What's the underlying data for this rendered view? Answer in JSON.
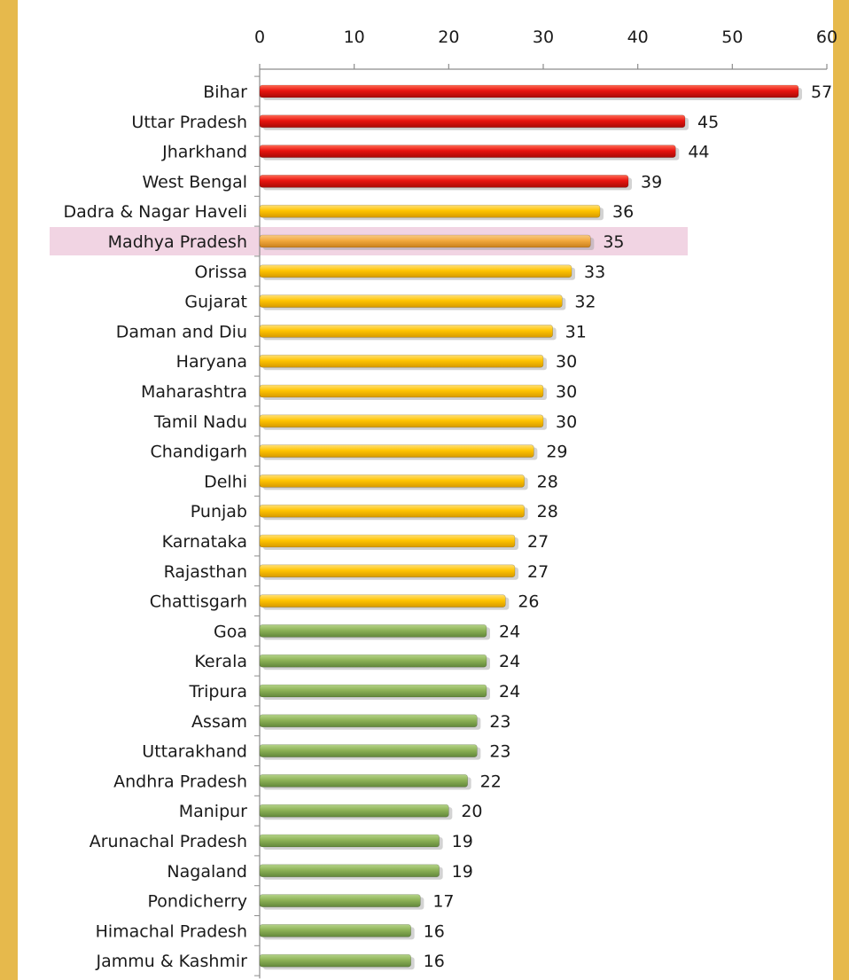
{
  "chart_data": {
    "type": "bar",
    "orientation": "horizontal",
    "x_axis_position": "top",
    "xlim": [
      0,
      60
    ],
    "x_ticks": [
      0,
      10,
      20,
      30,
      40,
      50,
      60
    ],
    "highlighted_category": "Madhya Pradesh",
    "colors": {
      "red": "#E8140F",
      "yellow": "#FFC400",
      "green": "#8DB256",
      "highlight_bar": "#F2A93E",
      "highlight_band": "#F1D4E3"
    },
    "categories": [
      {
        "name": "Bihar",
        "value": 57,
        "color": "red"
      },
      {
        "name": "Uttar Pradesh",
        "value": 45,
        "color": "red"
      },
      {
        "name": "Jharkhand",
        "value": 44,
        "color": "red"
      },
      {
        "name": "West Bengal",
        "value": 39,
        "color": "red"
      },
      {
        "name": "Dadra & Nagar Haveli",
        "value": 36,
        "color": "yellow"
      },
      {
        "name": "Madhya Pradesh",
        "value": 35,
        "color": "highlight_bar"
      },
      {
        "name": "Orissa",
        "value": 33,
        "color": "yellow"
      },
      {
        "name": "Gujarat",
        "value": 32,
        "color": "yellow"
      },
      {
        "name": "Daman and Diu",
        "value": 31,
        "color": "yellow"
      },
      {
        "name": "Haryana",
        "value": 30,
        "color": "yellow"
      },
      {
        "name": "Maharashtra",
        "value": 30,
        "color": "yellow"
      },
      {
        "name": "Tamil Nadu",
        "value": 30,
        "color": "yellow"
      },
      {
        "name": "Chandigarh",
        "value": 29,
        "color": "yellow"
      },
      {
        "name": "Delhi",
        "value": 28,
        "color": "yellow"
      },
      {
        "name": "Punjab",
        "value": 28,
        "color": "yellow"
      },
      {
        "name": "Karnataka",
        "value": 27,
        "color": "yellow"
      },
      {
        "name": "Rajasthan",
        "value": 27,
        "color": "yellow"
      },
      {
        "name": "Chattisgarh",
        "value": 26,
        "color": "yellow"
      },
      {
        "name": "Goa",
        "value": 24,
        "color": "green"
      },
      {
        "name": "Kerala",
        "value": 24,
        "color": "green"
      },
      {
        "name": "Tripura",
        "value": 24,
        "color": "green"
      },
      {
        "name": "Assam",
        "value": 23,
        "color": "green"
      },
      {
        "name": "Uttarakhand",
        "value": 23,
        "color": "green"
      },
      {
        "name": "Andhra Pradesh",
        "value": 22,
        "color": "green"
      },
      {
        "name": "Manipur",
        "value": 20,
        "color": "green"
      },
      {
        "name": "Arunachal Pradesh",
        "value": 19,
        "color": "green"
      },
      {
        "name": "Nagaland",
        "value": 19,
        "color": "green"
      },
      {
        "name": "Pondicherry",
        "value": 17,
        "color": "green"
      },
      {
        "name": "Himachal Pradesh",
        "value": 16,
        "color": "green"
      },
      {
        "name": "Jammu & Kashmir",
        "value": 16,
        "color": "green"
      }
    ]
  }
}
